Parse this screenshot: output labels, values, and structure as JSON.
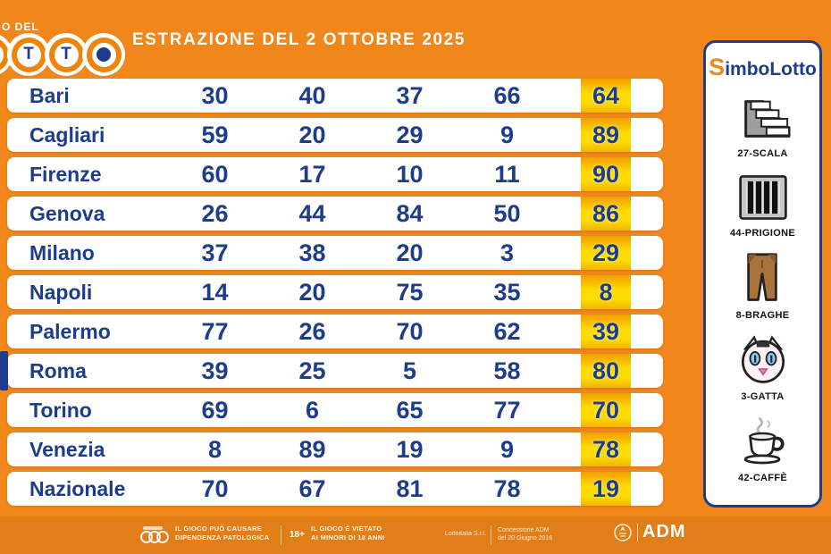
{
  "header": {
    "logo_small_text": "O DEL",
    "logo_letters": [
      "",
      "T",
      "T",
      "dot"
    ],
    "title": "ESTRAZIONE DEL 2 OTTOBRE 2025"
  },
  "table": {
    "highlighted_city": "Roma",
    "rows": [
      {
        "city": "Bari",
        "numbers": [
          "30",
          "40",
          "37",
          "66"
        ],
        "extra": "64"
      },
      {
        "city": "Cagliari",
        "numbers": [
          "59",
          "20",
          "29",
          "9"
        ],
        "extra": "89"
      },
      {
        "city": "Firenze",
        "numbers": [
          "60",
          "17",
          "10",
          "11"
        ],
        "extra": "90"
      },
      {
        "city": "Genova",
        "numbers": [
          "26",
          "44",
          "84",
          "50"
        ],
        "extra": "86"
      },
      {
        "city": "Milano",
        "numbers": [
          "37",
          "38",
          "20",
          "3"
        ],
        "extra": "29"
      },
      {
        "city": "Napoli",
        "numbers": [
          "14",
          "20",
          "75",
          "35"
        ],
        "extra": "8"
      },
      {
        "city": "Palermo",
        "numbers": [
          "77",
          "26",
          "70",
          "62"
        ],
        "extra": "39"
      },
      {
        "city": "Roma",
        "numbers": [
          "39",
          "25",
          "5",
          "58"
        ],
        "extra": "80"
      },
      {
        "city": "Torino",
        "numbers": [
          "69",
          "6",
          "65",
          "77"
        ],
        "extra": "70"
      },
      {
        "city": "Venezia",
        "numbers": [
          "8",
          "89",
          "19",
          "9"
        ],
        "extra": "78"
      },
      {
        "city": "Nazionale",
        "numbers": [
          "70",
          "67",
          "81",
          "78"
        ],
        "extra": "19"
      }
    ]
  },
  "sidebar": {
    "logo_s": "S",
    "logo_rest": "imboLotto",
    "symbols": [
      {
        "label": "27-SCALA",
        "icon": "stairs-icon"
      },
      {
        "label": "44-PRIGIONE",
        "icon": "prison-icon"
      },
      {
        "label": "8-BRAGHE",
        "icon": "trousers-icon"
      },
      {
        "label": "3-GATTA",
        "icon": "cat-icon"
      },
      {
        "label": "42-CAFFÈ",
        "icon": "coffee-icon"
      }
    ]
  },
  "footer": {
    "warning1_line1": "IL GIOCO PUÒ CAUSARE",
    "warning1_line2": "DIPENDENZA PATOLOGICA",
    "age_badge": "18+",
    "warning2_line1": "IL GIOCO È VIETATO",
    "warning2_line2": "AI MINORI DI 18 ANNI",
    "company": "Lottoitalia S.r.l.",
    "concession_line1": "Concessione ADM",
    "concession_line2": "del 20 Giugno 2016",
    "adm_label": "ADM"
  },
  "colors": {
    "background": "#F1861A",
    "navy": "#1D3C8C",
    "yellow_top": "#F0A000",
    "yellow_bottom": "#FFDC00"
  }
}
